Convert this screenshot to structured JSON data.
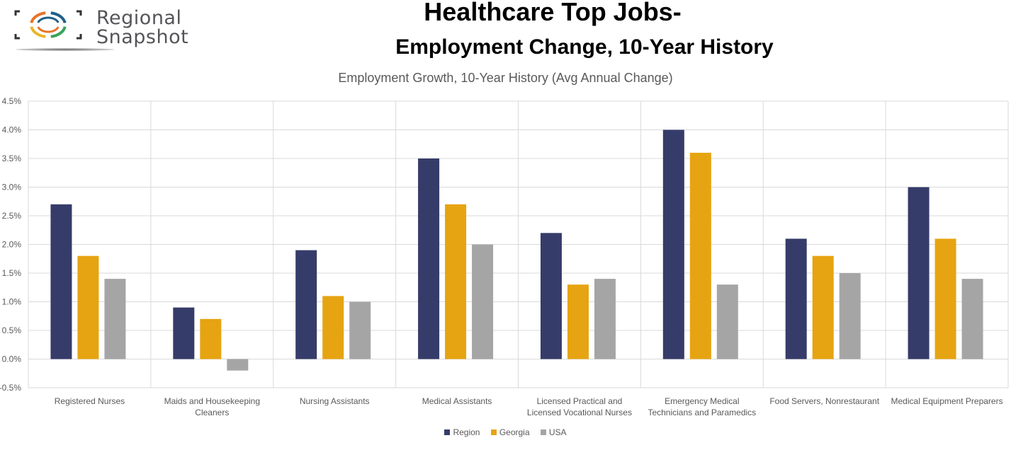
{
  "logo": {
    "line1": "Regional",
    "line2": "Snapshot",
    "ring_colors": [
      "#e8742a",
      "#1f5f8b",
      "#3aa15a",
      "#e8b52a"
    ]
  },
  "header": {
    "title": "Healthcare Top Jobs-",
    "subtitle": "Employment Change, 10-Year History"
  },
  "chart_data": {
    "type": "bar",
    "title": "Employment Growth, 10-Year History (Avg Annual Change)",
    "xlabel": "",
    "ylabel": "",
    "ylim": [
      -0.5,
      4.5
    ],
    "ytick_step": 0.5,
    "y_ticks": [
      "4.5%",
      "4.0%",
      "3.5%",
      "3.0%",
      "2.5%",
      "2.0%",
      "1.5%",
      "1.0%",
      "0.5%",
      "0.0%",
      "-0.5%"
    ],
    "y_tick_values": [
      4.5,
      4.0,
      3.5,
      3.0,
      2.5,
      2.0,
      1.5,
      1.0,
      0.5,
      0.0,
      -0.5
    ],
    "grid": true,
    "legend_position": "bottom",
    "categories": [
      [
        "Registered Nurses"
      ],
      [
        "Maids and Housekeeping",
        "Cleaners"
      ],
      [
        "Nursing Assistants"
      ],
      [
        "Medical Assistants"
      ],
      [
        "Licensed Practical and",
        "Licensed Vocational Nurses"
      ],
      [
        "Emergency Medical",
        "Technicians and Paramedics"
      ],
      [
        "Food Servers, Nonrestaurant"
      ],
      [
        "Medical Equipment Preparers"
      ]
    ],
    "series": [
      {
        "name": "Region",
        "color": "#363c69",
        "values": [
          2.7,
          0.9,
          1.9,
          3.5,
          2.2,
          4.0,
          2.1,
          3.0
        ]
      },
      {
        "name": "Georgia",
        "color": "#e6a412",
        "values": [
          1.8,
          0.7,
          1.1,
          2.7,
          1.3,
          3.6,
          1.8,
          2.1
        ]
      },
      {
        "name": "USA",
        "color": "#a5a5a5",
        "values": [
          1.4,
          -0.2,
          1.0,
          2.0,
          1.4,
          1.3,
          1.5,
          1.4
        ]
      }
    ]
  }
}
